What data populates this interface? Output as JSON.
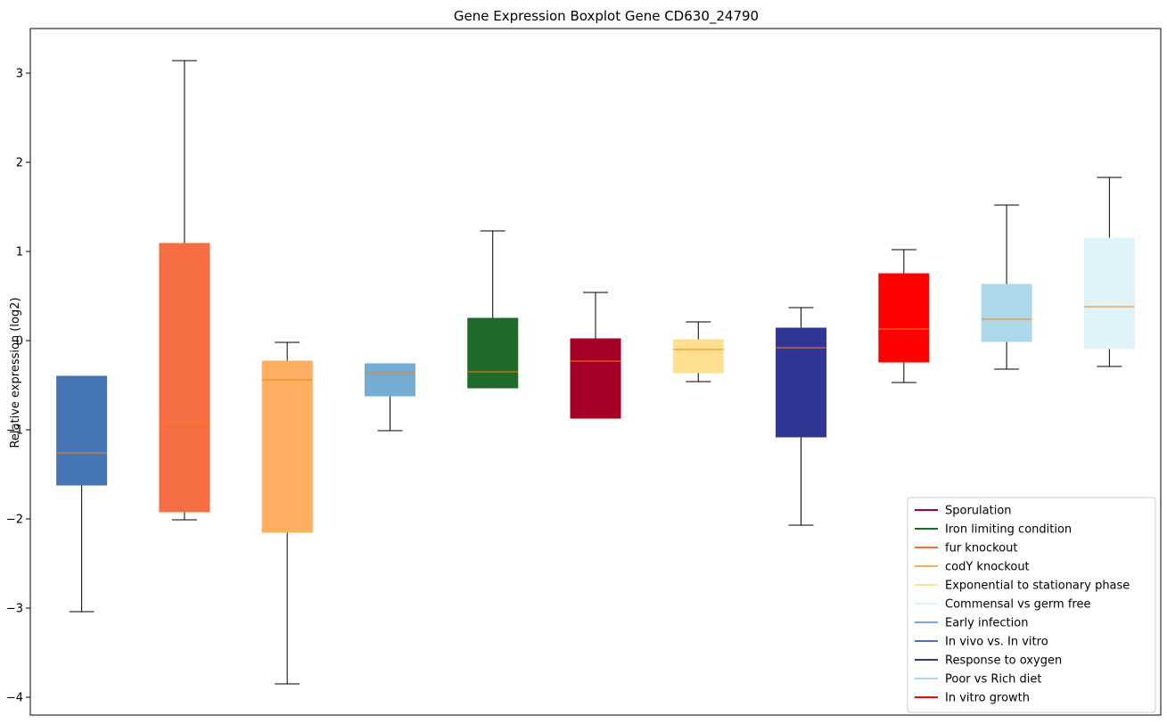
{
  "chart_data": {
    "type": "boxplot",
    "title": "Gene Expression Boxplot Gene CD630_24790",
    "xlabel": "",
    "ylabel": "Relative expression (log2)",
    "ylim": [
      -4.2,
      3.5
    ],
    "yticks": [
      3,
      2,
      1,
      0,
      -1,
      -2,
      -3,
      -4
    ],
    "ytick_labels": [
      "3",
      "2",
      "1",
      "0",
      "−1",
      "−2",
      "−3",
      "−4"
    ],
    "legend_position": "bottom-right",
    "median_color": "#ff7f0e",
    "whisker_color": "#000000",
    "boxes": [
      {
        "color": "#4575b4",
        "whislo": -3.04,
        "q1": -1.62,
        "med": -1.26,
        "q3": -0.4,
        "whishi": -0.4
      },
      {
        "color": "#f46d43",
        "whislo": -2.01,
        "q1": -1.92,
        "med": -0.92,
        "q3": 1.09,
        "whishi": 3.14
      },
      {
        "color": "#fdae61",
        "whislo": -3.85,
        "q1": -2.15,
        "med": -0.44,
        "q3": -0.23,
        "whishi": -0.02
      },
      {
        "color": "#74add1",
        "whislo": -1.01,
        "q1": -0.62,
        "med": -0.36,
        "q3": -0.26,
        "whishi": -0.26
      },
      {
        "color": "#1f6a2a",
        "whislo": -0.53,
        "q1": -0.53,
        "med": -0.35,
        "q3": 0.25,
        "whishi": 1.23
      },
      {
        "color": "#a50026",
        "whislo": -0.87,
        "q1": -0.87,
        "med": -0.23,
        "q3": 0.02,
        "whishi": 0.54
      },
      {
        "color": "#fee090",
        "whislo": -0.46,
        "q1": -0.36,
        "med": -0.1,
        "q3": 0.01,
        "whishi": 0.21
      },
      {
        "color": "#313695",
        "whislo": -2.07,
        "q1": -1.08,
        "med": -0.08,
        "q3": 0.14,
        "whishi": 0.37
      },
      {
        "color": "#ff0000",
        "whislo": -0.47,
        "q1": -0.24,
        "med": 0.13,
        "q3": 0.75,
        "whishi": 1.02
      },
      {
        "color": "#abd9e9",
        "whislo": -0.32,
        "q1": -0.01,
        "med": 0.24,
        "q3": 0.63,
        "whishi": 1.52
      },
      {
        "color": "#e0f3f8",
        "whislo": -0.29,
        "q1": -0.09,
        "med": 0.38,
        "q3": 1.15,
        "whishi": 1.83
      }
    ],
    "legend": [
      {
        "label": "Sporulation",
        "color": "#a50026"
      },
      {
        "label": "Iron limiting condition",
        "color": "#1f6a2a"
      },
      {
        "label": "fur knockout",
        "color": "#f46d43"
      },
      {
        "label": "codY knockout",
        "color": "#fdae61"
      },
      {
        "label": "Exponential to stationary phase",
        "color": "#fee090"
      },
      {
        "label": "Commensal vs germ free",
        "color": "#e0f3f8"
      },
      {
        "label": "Early infection",
        "color": "#74add1"
      },
      {
        "label": "In vivo vs. In vitro",
        "color": "#4575b4"
      },
      {
        "label": "Response to oxygen",
        "color": "#313695"
      },
      {
        "label": "Poor vs Rich diet",
        "color": "#abd9e9"
      },
      {
        "label": "In vitro growth",
        "color": "#ff0000"
      }
    ]
  }
}
